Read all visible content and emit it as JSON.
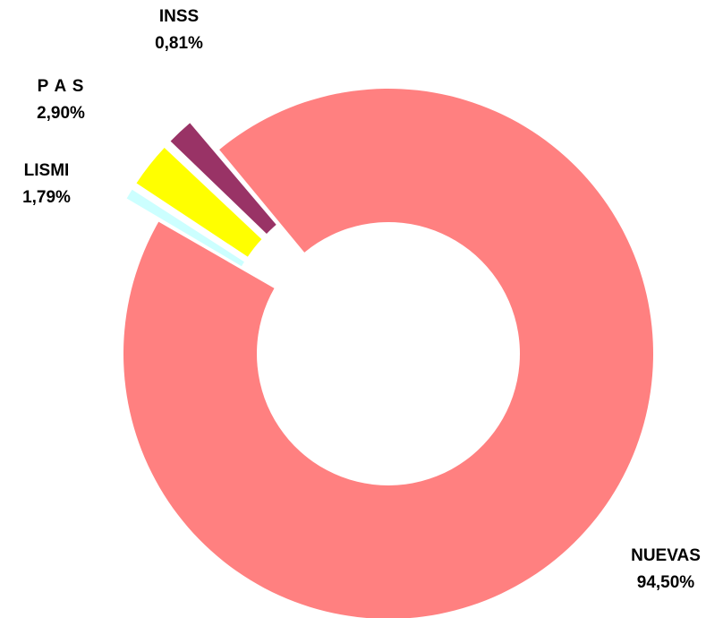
{
  "chart_data": {
    "type": "pie",
    "variant": "donut",
    "exploded": [
      "INSS",
      "P A S",
      "LISMI"
    ],
    "slices": [
      {
        "name": "NUEVAS",
        "value": 94.5,
        "value_label": "94,50%",
        "color": "#FF8080"
      },
      {
        "name": "INSS",
        "value": 0.81,
        "value_label": "0,81%",
        "color": "#CCFFFF"
      },
      {
        "name": "P A S",
        "value": 2.9,
        "value_label": "2,90%",
        "color": "#FFFF00"
      },
      {
        "name": "LISMI",
        "value": 1.79,
        "value_label": "1,79%",
        "color": "#993366"
      }
    ]
  }
}
